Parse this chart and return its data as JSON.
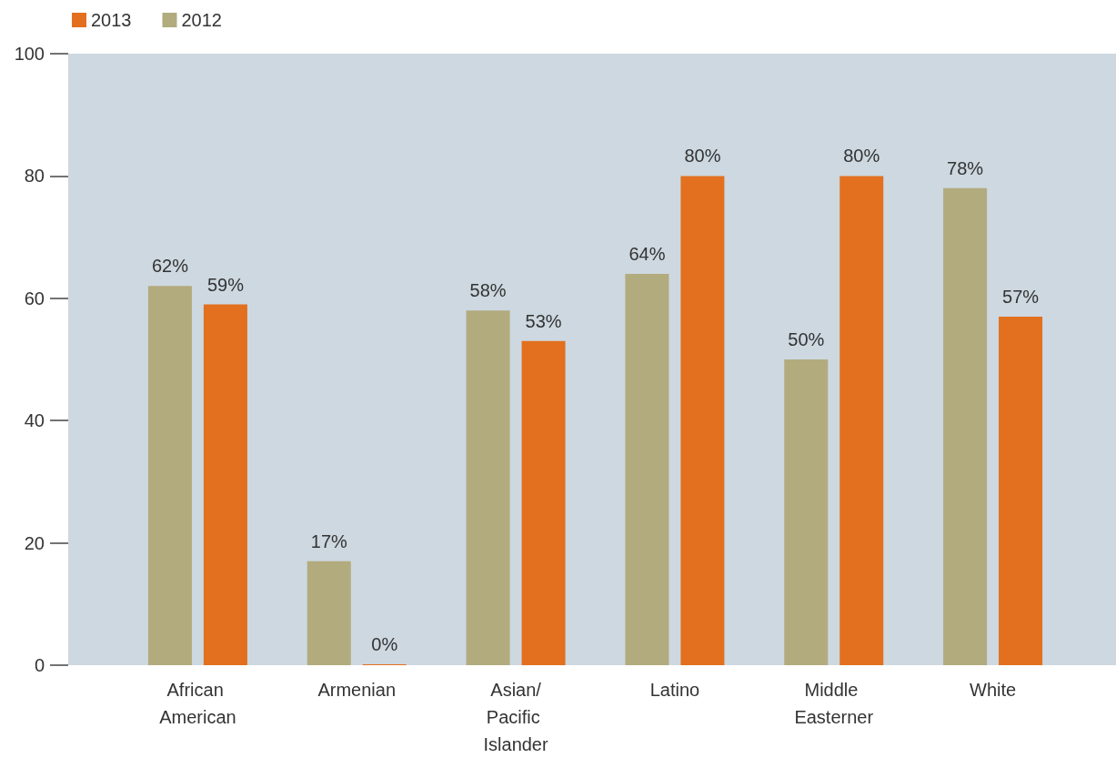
{
  "chart_data": {
    "type": "bar",
    "categories": [
      "African American",
      "Armenian",
      "Asian/Pacific Islander",
      "Latino",
      "Middle Easterner",
      "White"
    ],
    "series": [
      {
        "name": "2012",
        "color": "#b2ab7e",
        "values": [
          62,
          17,
          58,
          64,
          50,
          78
        ],
        "value_labels": [
          "62%",
          "17%",
          "58%",
          "64%",
          "50%",
          "78%"
        ]
      },
      {
        "name": "2013",
        "color": "#e2701e",
        "values": [
          59,
          0,
          53,
          80,
          80,
          57
        ],
        "value_labels": [
          "59%",
          "0%",
          "53%",
          "80%",
          "80%",
          "57%"
        ]
      }
    ],
    "ylim": [
      0,
      100
    ],
    "yticks": [
      0,
      20,
      40,
      60,
      80,
      100
    ],
    "grid": false,
    "legend": "top left"
  }
}
